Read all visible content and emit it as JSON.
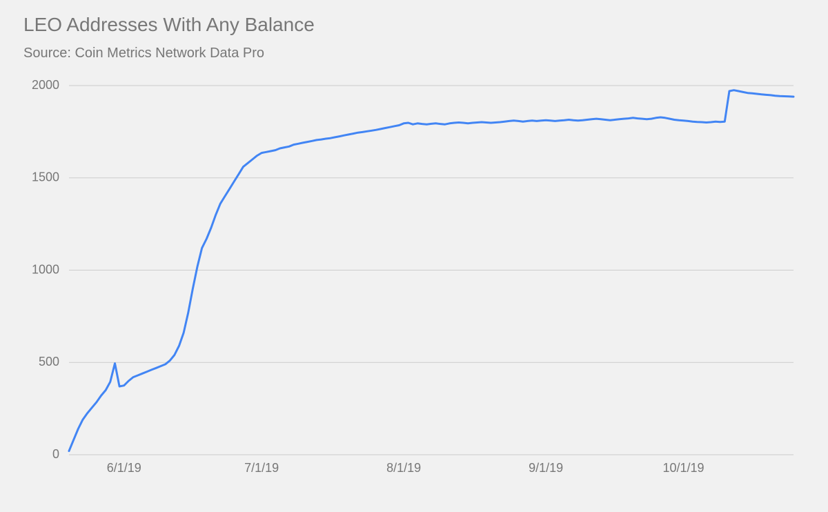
{
  "chart": {
    "type": "line",
    "title": "LEO Addresses With Any Balance",
    "subtitle": "Source: Coin Metrics Network Data Pro",
    "title_fontsize": 28,
    "subtitle_fontsize": 20,
    "title_color": "#777777",
    "subtitle_color": "#777777",
    "background_color": "#f1f1f1",
    "grid_color": "#cccccc",
    "axis_label_color": "#777777",
    "line_color": "#4285f4",
    "line_width": 3,
    "y_axis": {
      "min": 0,
      "max": 2000,
      "ticks": [
        0,
        500,
        1000,
        1500,
        2000
      ],
      "tick_labels": [
        "0",
        "500",
        "1000",
        "1500",
        "2000"
      ]
    },
    "x_axis": {
      "min": 0,
      "max": 158,
      "ticks": [
        12,
        42,
        73,
        104,
        134
      ],
      "tick_labels": [
        "6/1/19",
        "7/1/19",
        "8/1/19",
        "9/1/19",
        "10/1/19"
      ]
    },
    "series": {
      "points": [
        [
          0,
          20
        ],
        [
          1,
          80
        ],
        [
          2,
          140
        ],
        [
          3,
          190
        ],
        [
          4,
          225
        ],
        [
          5,
          255
        ],
        [
          6,
          285
        ],
        [
          7,
          320
        ],
        [
          8,
          350
        ],
        [
          9,
          395
        ],
        [
          10,
          495
        ],
        [
          11,
          370
        ],
        [
          12,
          375
        ],
        [
          13,
          400
        ],
        [
          14,
          420
        ],
        [
          15,
          430
        ],
        [
          16,
          440
        ],
        [
          17,
          450
        ],
        [
          18,
          460
        ],
        [
          19,
          470
        ],
        [
          20,
          480
        ],
        [
          21,
          490
        ],
        [
          22,
          510
        ],
        [
          23,
          540
        ],
        [
          24,
          590
        ],
        [
          25,
          660
        ],
        [
          26,
          770
        ],
        [
          27,
          900
        ],
        [
          28,
          1020
        ],
        [
          29,
          1120
        ],
        [
          30,
          1170
        ],
        [
          31,
          1230
        ],
        [
          32,
          1300
        ],
        [
          33,
          1360
        ],
        [
          34,
          1400
        ],
        [
          35,
          1440
        ],
        [
          36,
          1480
        ],
        [
          37,
          1520
        ],
        [
          38,
          1560
        ],
        [
          39,
          1580
        ],
        [
          40,
          1600
        ],
        [
          41,
          1620
        ],
        [
          42,
          1635
        ],
        [
          43,
          1640
        ],
        [
          44,
          1645
        ],
        [
          45,
          1650
        ],
        [
          46,
          1660
        ],
        [
          47,
          1665
        ],
        [
          48,
          1670
        ],
        [
          49,
          1680
        ],
        [
          50,
          1685
        ],
        [
          51,
          1690
        ],
        [
          52,
          1695
        ],
        [
          53,
          1700
        ],
        [
          54,
          1705
        ],
        [
          55,
          1708
        ],
        [
          56,
          1712
        ],
        [
          57,
          1715
        ],
        [
          58,
          1720
        ],
        [
          59,
          1725
        ],
        [
          60,
          1730
        ],
        [
          61,
          1735
        ],
        [
          62,
          1740
        ],
        [
          63,
          1745
        ],
        [
          64,
          1748
        ],
        [
          65,
          1752
        ],
        [
          66,
          1756
        ],
        [
          67,
          1760
        ],
        [
          68,
          1765
        ],
        [
          69,
          1770
        ],
        [
          70,
          1775
        ],
        [
          71,
          1780
        ],
        [
          72,
          1785
        ],
        [
          73,
          1795
        ],
        [
          74,
          1798
        ],
        [
          75,
          1790
        ],
        [
          76,
          1795
        ],
        [
          77,
          1792
        ],
        [
          78,
          1790
        ],
        [
          79,
          1793
        ],
        [
          80,
          1795
        ],
        [
          81,
          1792
        ],
        [
          82,
          1790
        ],
        [
          83,
          1795
        ],
        [
          84,
          1798
        ],
        [
          85,
          1800
        ],
        [
          86,
          1798
        ],
        [
          87,
          1795
        ],
        [
          88,
          1798
        ],
        [
          89,
          1800
        ],
        [
          90,
          1802
        ],
        [
          91,
          1800
        ],
        [
          92,
          1798
        ],
        [
          93,
          1800
        ],
        [
          94,
          1802
        ],
        [
          95,
          1805
        ],
        [
          96,
          1808
        ],
        [
          97,
          1810
        ],
        [
          98,
          1808
        ],
        [
          99,
          1805
        ],
        [
          100,
          1808
        ],
        [
          101,
          1810
        ],
        [
          102,
          1808
        ],
        [
          103,
          1810
        ],
        [
          104,
          1812
        ],
        [
          105,
          1810
        ],
        [
          106,
          1808
        ],
        [
          107,
          1810
        ],
        [
          108,
          1812
        ],
        [
          109,
          1815
        ],
        [
          110,
          1812
        ],
        [
          111,
          1810
        ],
        [
          112,
          1812
        ],
        [
          113,
          1815
        ],
        [
          114,
          1818
        ],
        [
          115,
          1820
        ],
        [
          116,
          1818
        ],
        [
          117,
          1815
        ],
        [
          118,
          1812
        ],
        [
          119,
          1815
        ],
        [
          120,
          1818
        ],
        [
          121,
          1820
        ],
        [
          122,
          1822
        ],
        [
          123,
          1825
        ],
        [
          124,
          1822
        ],
        [
          125,
          1820
        ],
        [
          126,
          1818
        ],
        [
          127,
          1820
        ],
        [
          128,
          1825
        ],
        [
          129,
          1828
        ],
        [
          130,
          1825
        ],
        [
          131,
          1820
        ],
        [
          132,
          1815
        ],
        [
          133,
          1812
        ],
        [
          134,
          1810
        ],
        [
          135,
          1808
        ],
        [
          136,
          1805
        ],
        [
          137,
          1803
        ],
        [
          138,
          1802
        ],
        [
          139,
          1800
        ],
        [
          140,
          1802
        ],
        [
          141,
          1805
        ],
        [
          142,
          1803
        ],
        [
          143,
          1805
        ],
        [
          144,
          1970
        ],
        [
          145,
          1975
        ],
        [
          146,
          1970
        ],
        [
          147,
          1965
        ],
        [
          148,
          1960
        ],
        [
          149,
          1958
        ],
        [
          150,
          1955
        ],
        [
          151,
          1952
        ],
        [
          152,
          1950
        ],
        [
          153,
          1948
        ],
        [
          154,
          1945
        ],
        [
          155,
          1943
        ],
        [
          156,
          1942
        ],
        [
          157,
          1941
        ],
        [
          158,
          1940
        ]
      ]
    }
  }
}
